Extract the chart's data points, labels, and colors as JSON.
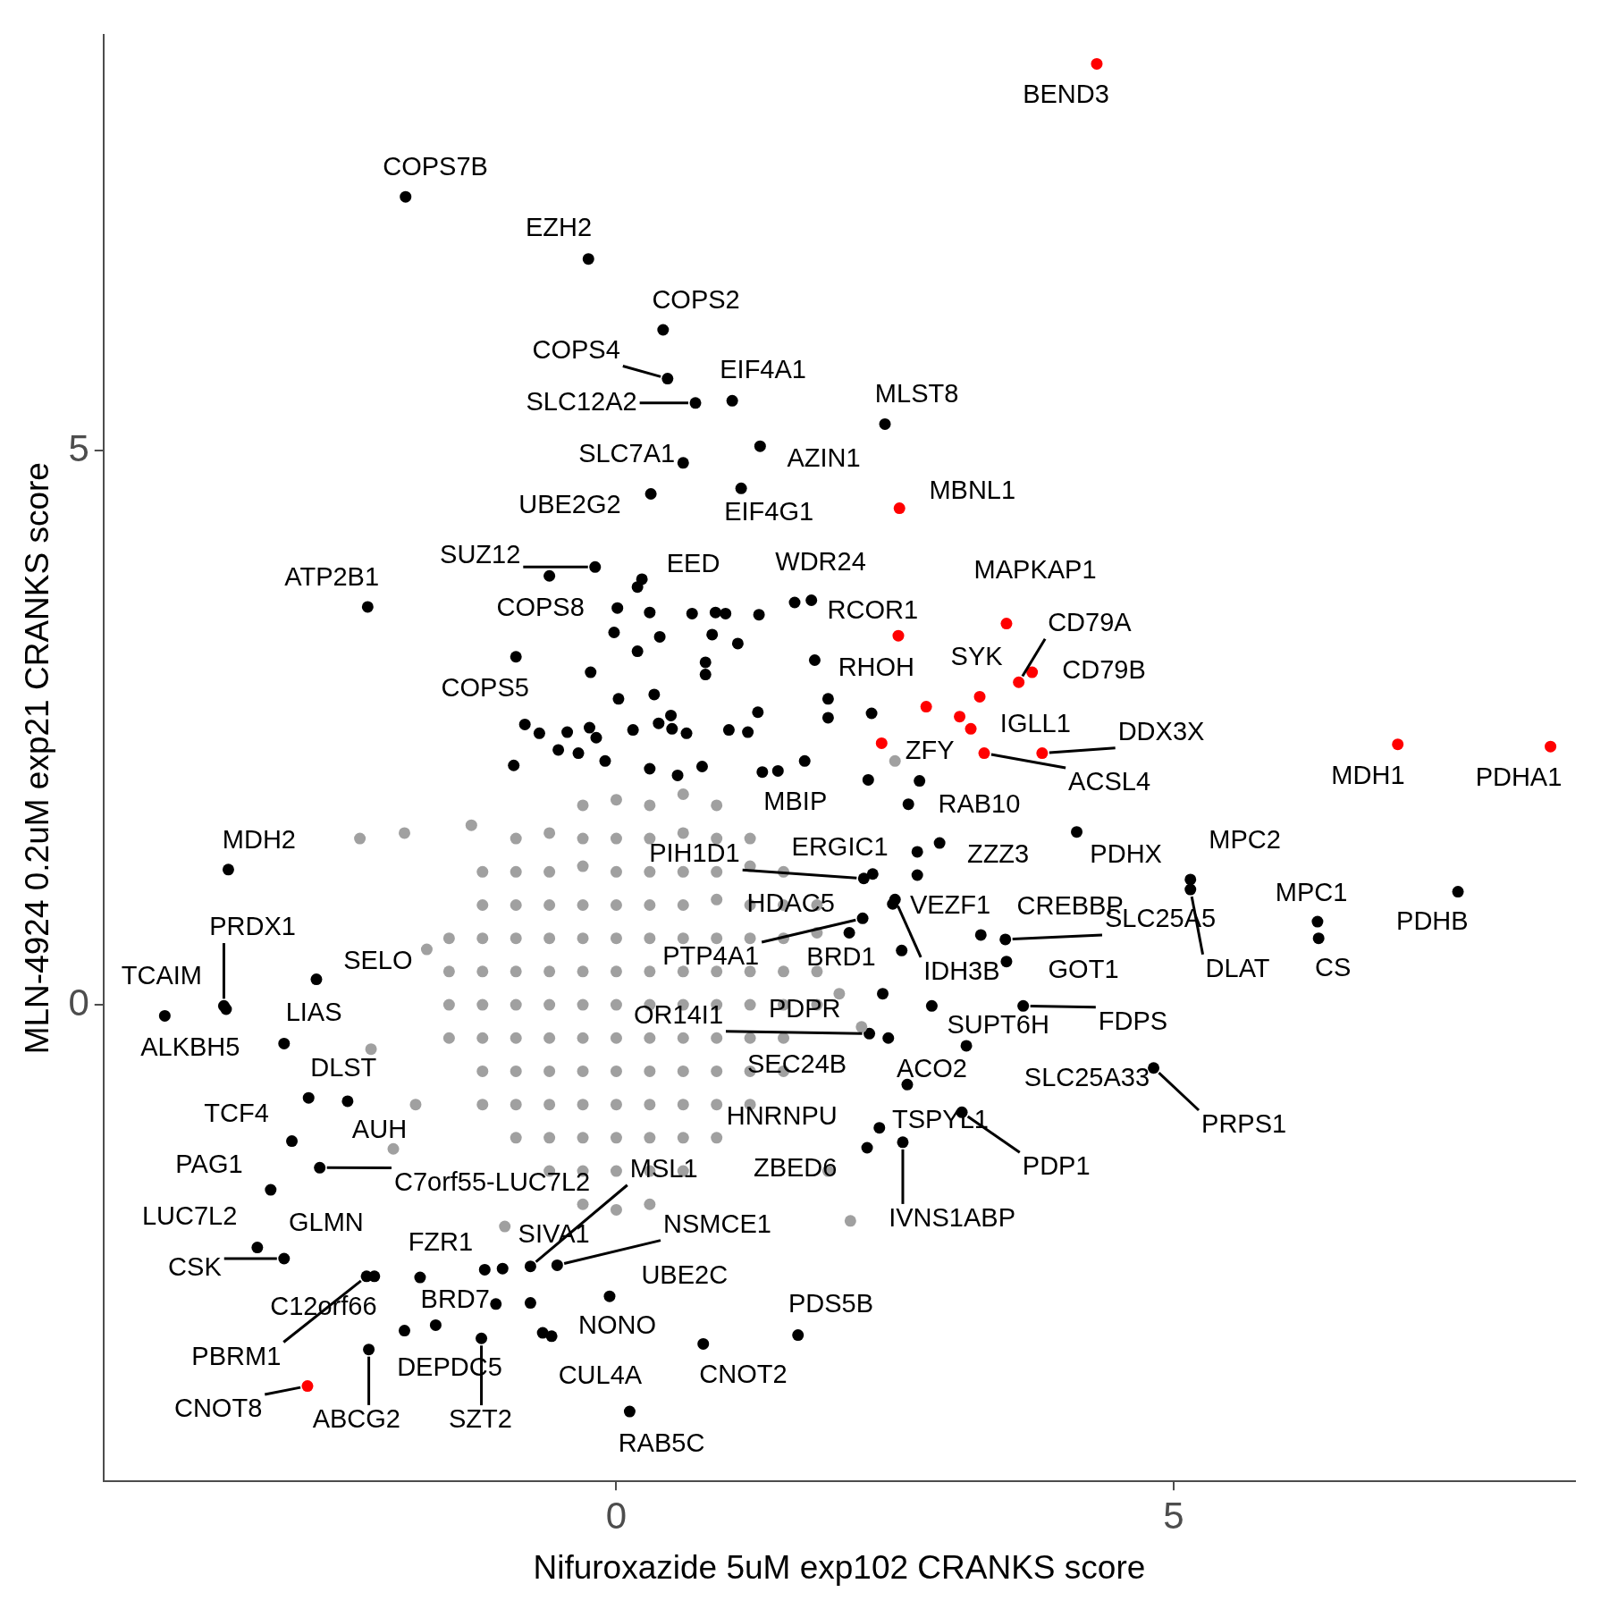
{
  "chart_data": {
    "type": "scatter",
    "xlabel": "Nifuroxazide 5uM exp102 CRANKS score",
    "ylabel": "MLN-4924 0.2uM exp21 CRANKS score",
    "xlim": [
      -4.6,
      8.6
    ],
    "ylim": [
      -4.3,
      8.75
    ],
    "xticks": [
      0,
      5
    ],
    "yticks": [
      0,
      5
    ],
    "grid": false,
    "legend": false,
    "marker": "circle",
    "series": [
      {
        "color": "#a0a0a0",
        "x": [
          -0.3,
          0,
          0.3,
          0.6,
          0.9,
          -0.9,
          -0.6,
          -0.3,
          0,
          0.3,
          0.6,
          0.9,
          1.2,
          -1.2,
          -0.9,
          -0.6,
          -0.3,
          0,
          0.3,
          0.6,
          0.9,
          1.2,
          1.5,
          -1.2,
          -0.9,
          -0.6,
          -0.3,
          0,
          0.3,
          0.6,
          0.9,
          1.2,
          1.5,
          1.8,
          -1.5,
          -1.2,
          -0.9,
          -0.6,
          -0.3,
          0,
          0.3,
          0.6,
          0.9,
          1.2,
          1.5,
          1.8,
          -1.5,
          -1.2,
          -0.9,
          -0.6,
          -0.3,
          0,
          0.3,
          0.6,
          0.9,
          1.2,
          1.5,
          1.8,
          -1.5,
          -1.2,
          -0.9,
          -0.6,
          -0.3,
          0,
          0.3,
          0.6,
          0.9,
          1.2,
          1.5,
          1.8,
          -1.5,
          -1.2,
          -0.9,
          -0.6,
          -0.3,
          0,
          0.3,
          0.6,
          0.9,
          1.2,
          1.5,
          -1.2,
          -0.9,
          -0.6,
          -0.3,
          0,
          0.3,
          0.6,
          0.9,
          1.2,
          1.5,
          -1.2,
          -0.9,
          -0.6,
          -0.3,
          0,
          0.3,
          0.6,
          0.9,
          1.2,
          -0.9,
          -0.6,
          -0.3,
          0,
          0.3,
          0.6,
          0.9,
          -0.6,
          -0.3,
          0,
          0.3,
          0.6,
          -0.3,
          0,
          0.3,
          -2.3,
          -1.9,
          -1.3,
          -2.2,
          -2.0,
          -1.0,
          2.1,
          2.0,
          2.2,
          2.5,
          1.9,
          -1.7,
          -1.8
        ],
        "values": [
          1.8,
          1.85,
          1.8,
          1.9,
          1.8,
          1.5,
          1.55,
          1.5,
          1.5,
          1.5,
          1.55,
          1.5,
          1.5,
          1.2,
          1.2,
          1.2,
          1.25,
          1.2,
          1.2,
          1.2,
          1.2,
          1.25,
          1.2,
          0.9,
          0.9,
          0.9,
          0.9,
          0.9,
          0.9,
          0.9,
          0.95,
          0.9,
          0.9,
          0.9,
          0.6,
          0.6,
          0.6,
          0.6,
          0.6,
          0.6,
          0.6,
          0.6,
          0.6,
          0.6,
          0.6,
          0.65,
          0.3,
          0.3,
          0.3,
          0.3,
          0.3,
          0.3,
          0.3,
          0.3,
          0.3,
          0.3,
          0.3,
          0.3,
          0,
          0,
          0,
          0,
          0,
          0,
          0,
          0,
          0,
          0,
          0,
          0,
          -0.3,
          -0.3,
          -0.3,
          -0.3,
          -0.3,
          -0.3,
          -0.3,
          -0.3,
          -0.3,
          -0.3,
          -0.3,
          -0.6,
          -0.6,
          -0.6,
          -0.6,
          -0.6,
          -0.6,
          -0.6,
          -0.6,
          -0.6,
          -0.6,
          -0.9,
          -0.9,
          -0.9,
          -0.9,
          -0.9,
          -0.9,
          -0.9,
          -0.9,
          -0.9,
          -1.2,
          -1.2,
          -1.2,
          -1.2,
          -1.2,
          -1.2,
          -1.2,
          -1.5,
          -1.5,
          -1.5,
          -1.5,
          -1.5,
          -1.8,
          -1.85,
          -1.8,
          1.5,
          1.55,
          1.62,
          -0.4,
          -1.3,
          -2.0,
          -1.95,
          0.1,
          -0.2,
          2.2,
          -1.5,
          0.5,
          -0.9
        ]
      },
      {
        "color": "#000000",
        "x": [
          -1.89,
          -0.25,
          0.42,
          0.46,
          0.71,
          1.04,
          2.41,
          1.29,
          0.6,
          1.12,
          0.31,
          -0.19,
          -0.6,
          0.23,
          0.19,
          -2.23,
          1.6,
          1.75,
          0.01,
          0.3,
          0.68,
          0.89,
          0.98,
          1.28,
          -0.02,
          0.19,
          0.39,
          0.86,
          1.09,
          -0.9,
          1.78,
          0.8,
          0.8,
          -0.23,
          0.02,
          0.34,
          0.49,
          0.38,
          1.27,
          1.9,
          1.9,
          2.29,
          -0.82,
          -0.44,
          -0.24,
          -0.18,
          -0.69,
          -0.52,
          -0.34,
          0.15,
          0.5,
          0.63,
          1.01,
          1.18,
          1.69,
          1.31,
          1.45,
          -0.1,
          0.3,
          0.55,
          0.77,
          -0.92,
          2.26,
          2.72,
          2.62,
          2.9,
          2.7,
          2.7,
          4.13,
          5.15,
          5.15,
          7.55,
          6.29,
          6.3,
          2.3,
          2.22,
          2.5,
          2.48,
          2.21,
          2.09,
          2.56,
          3.27,
          3.49,
          3.5,
          2.39,
          2.83,
          3.65,
          3.14,
          2.27,
          2.44,
          2.61,
          4.82,
          3.1,
          2.36,
          2.25,
          2.57,
          -3.48,
          -3.52,
          -3.5,
          -4.05,
          -2.69,
          -2.98,
          -2.76,
          -2.41,
          -2.91,
          -2.66,
          -3.1,
          -3.22,
          -2.98,
          -2.24,
          -2.17,
          -1.76,
          -1.18,
          -1.02,
          -0.77,
          -0.53,
          -0.06,
          -1.08,
          -0.77,
          -1.62,
          -1.9,
          -1.21,
          -0.66,
          -0.58,
          -2.22,
          0.78,
          1.63,
          0.12
        ],
        "values": [
          7.29,
          6.73,
          6.09,
          5.65,
          5.43,
          5.45,
          5.24,
          5.04,
          4.89,
          4.66,
          4.61,
          3.95,
          3.87,
          3.84,
          3.77,
          3.59,
          3.63,
          3.65,
          3.58,
          3.54,
          3.53,
          3.54,
          3.53,
          3.52,
          3.36,
          3.19,
          3.32,
          3.34,
          3.26,
          3.14,
          3.11,
          3.09,
          2.98,
          3.0,
          2.76,
          2.8,
          2.61,
          2.54,
          2.64,
          2.76,
          2.59,
          2.63,
          2.53,
          2.46,
          2.5,
          2.41,
          2.45,
          2.3,
          2.27,
          2.48,
          2.49,
          2.45,
          2.48,
          2.46,
          2.2,
          2.1,
          2.11,
          2.2,
          2.13,
          2.07,
          2.15,
          2.16,
          2.03,
          2.02,
          1.81,
          1.46,
          1.38,
          1.17,
          1.56,
          1.13,
          1.04,
          1.02,
          0.75,
          0.6,
          1.18,
          1.14,
          0.95,
          0.91,
          0.78,
          0.65,
          0.49,
          0.63,
          0.59,
          0.39,
          0.1,
          -0.01,
          -0.01,
          -0.37,
          -0.26,
          -0.3,
          -0.72,
          -0.57,
          -0.97,
          -1.11,
          -1.29,
          -1.24,
          1.22,
          -0.01,
          -0.04,
          -0.1,
          0.23,
          -0.35,
          -0.84,
          -0.87,
          -1.23,
          -1.47,
          -1.67,
          -2.19,
          -2.29,
          -2.45,
          -2.45,
          -2.46,
          -2.39,
          -2.38,
          -2.36,
          -2.35,
          -2.63,
          -2.7,
          -2.69,
          -2.89,
          -2.94,
          -3.01,
          -2.96,
          -2.99,
          -3.11,
          -3.06,
          -2.98,
          -3.67
        ]
      },
      {
        "color": "#ff0000",
        "x": [
          4.31,
          2.54,
          2.53,
          3.5,
          3.73,
          3.61,
          3.26,
          2.78,
          3.08,
          3.18,
          2.38,
          3.3,
          3.82,
          7.01,
          8.38,
          -2.77
        ],
        "values": [
          8.49,
          4.48,
          3.33,
          3.44,
          3.0,
          2.91,
          2.78,
          2.69,
          2.6,
          2.49,
          2.36,
          2.27,
          2.27,
          2.35,
          2.33,
          -3.44
        ]
      }
    ],
    "annotations": [
      {
        "text": "BEND3",
        "x": 4.31,
        "y": 8.49
      },
      {
        "text": "COPS7B",
        "x": -1.89,
        "y": 7.29
      },
      {
        "text": "EZH2",
        "x": -0.25,
        "y": 6.73
      },
      {
        "text": "COPS2",
        "x": 0.42,
        "y": 6.09
      },
      {
        "text": "COPS4",
        "x": 0.46,
        "y": 5.65
      },
      {
        "text": "EIF4A1",
        "x": 1.04,
        "y": 5.45
      },
      {
        "text": "SLC12A2",
        "x": 0.71,
        "y": 5.43
      },
      {
        "text": "MLST8",
        "x": 2.41,
        "y": 5.24
      },
      {
        "text": "SLC7A1",
        "x": 0.6,
        "y": 4.89
      },
      {
        "text": "AZIN1",
        "x": 1.29,
        "y": 5.04
      },
      {
        "text": "MBNL1",
        "x": 2.54,
        "y": 4.48
      },
      {
        "text": "UBE2G2",
        "x": 0.31,
        "y": 4.61
      },
      {
        "text": "EIF4G1",
        "x": 1.12,
        "y": 4.66
      },
      {
        "text": "SUZ12",
        "x": -0.19,
        "y": 3.95
      },
      {
        "text": "EED",
        "x": 0.23,
        "y": 3.84
      },
      {
        "text": "WDR24",
        "x": 1.75,
        "y": 3.65
      },
      {
        "text": "ATP2B1",
        "x": -2.23,
        "y": 3.59
      },
      {
        "text": "MAPKAP1",
        "x": 3.5,
        "y": 3.44
      },
      {
        "text": "COPS8",
        "x": 0.01,
        "y": 3.58
      },
      {
        "text": "RCOR1",
        "x": 2.53,
        "y": 3.33
      },
      {
        "text": "CD79A",
        "x": 3.61,
        "y": 2.91
      },
      {
        "text": "SYK",
        "x": 3.26,
        "y": 2.78
      },
      {
        "text": "RHOH",
        "x": 1.78,
        "y": 3.11
      },
      {
        "text": "CD79B",
        "x": 3.73,
        "y": 3.0
      },
      {
        "text": "COPS5",
        "x": -0.9,
        "y": 3.14
      },
      {
        "text": "IGLL1",
        "x": 3.18,
        "y": 2.49
      },
      {
        "text": "DDX3X",
        "x": 3.82,
        "y": 2.27
      },
      {
        "text": "ZFY",
        "x": 2.38,
        "y": 2.36
      },
      {
        "text": "MDH1",
        "x": 7.01,
        "y": 2.35
      },
      {
        "text": "PDHA1",
        "x": 8.38,
        "y": 2.33
      },
      {
        "text": "ACSL4",
        "x": 3.3,
        "y": 2.27
      },
      {
        "text": "MBIP",
        "x": 2.26,
        "y": 2.03
      },
      {
        "text": "RAB10",
        "x": 2.62,
        "y": 1.81
      },
      {
        "text": "MDH2",
        "x": -3.48,
        "y": 1.22
      },
      {
        "text": "MPC2",
        "x": 5.15,
        "y": 1.13
      },
      {
        "text": "PIH1D1",
        "x": 2.22,
        "y": 1.14
      },
      {
        "text": "ERGIC1",
        "x": 2.3,
        "y": 1.18
      },
      {
        "text": "ZZZ3",
        "x": 2.9,
        "y": 1.46
      },
      {
        "text": "PDHX",
        "x": 4.13,
        "y": 1.56
      },
      {
        "text": "MPC1",
        "x": 6.29,
        "y": 0.75
      },
      {
        "text": "HDAC5",
        "x": 2.09,
        "y": 0.65
      },
      {
        "text": "VEZF1",
        "x": 2.48,
        "y": 0.91
      },
      {
        "text": "CREBBP",
        "x": 3.27,
        "y": 0.63
      },
      {
        "text": "PDHB",
        "x": 7.55,
        "y": 1.02
      },
      {
        "text": "PRDX1",
        "x": -3.52,
        "y": -0.01
      },
      {
        "text": "SLC25A5",
        "x": 3.49,
        "y": 0.59
      },
      {
        "text": "PTP4A1",
        "x": 2.21,
        "y": 0.78
      },
      {
        "text": "BRD1",
        "x": 2.56,
        "y": 0.49
      },
      {
        "text": "SELO",
        "x": -2.69,
        "y": 0.23
      },
      {
        "text": "IDH3B",
        "x": 2.5,
        "y": 0.95
      },
      {
        "text": "GOT1",
        "x": 3.5,
        "y": 0.39
      },
      {
        "text": "DLAT",
        "x": 5.15,
        "y": 1.04
      },
      {
        "text": "CS",
        "x": 6.3,
        "y": 0.6
      },
      {
        "text": "TCAIM",
        "x": -4.05,
        "y": -0.1
      },
      {
        "text": "LIAS",
        "x": -2.98,
        "y": -0.35
      },
      {
        "text": "OR14I1",
        "x": 2.27,
        "y": -0.26
      },
      {
        "text": "PDPR",
        "x": 2.39,
        "y": 0.1
      },
      {
        "text": "FDPS",
        "x": 3.65,
        "y": -0.01
      },
      {
        "text": "SUPT6H",
        "x": 3.14,
        "y": -0.37
      },
      {
        "text": "ALKBH5",
        "x": -3.5,
        "y": -0.04
      },
      {
        "text": "SEC24B",
        "x": 2.44,
        "y": -0.3
      },
      {
        "text": "ACO2",
        "x": 2.61,
        "y": -0.72
      },
      {
        "text": "DLST",
        "x": -2.76,
        "y": -0.84
      },
      {
        "text": "SLC25A33",
        "x": 4.82,
        "y": -0.57
      },
      {
        "text": "TCF4",
        "x": -2.91,
        "y": -1.23
      },
      {
        "text": "HNRNPU",
        "x": 2.36,
        "y": -1.11
      },
      {
        "text": "TSPYL1",
        "x": 3.1,
        "y": -0.97
      },
      {
        "text": "AUH",
        "x": -2.41,
        "y": -0.87
      },
      {
        "text": "PRPS1",
        "x": 4.82,
        "y": -0.57
      },
      {
        "text": "PAG1",
        "x": -3.1,
        "y": -1.67
      },
      {
        "text": "MSL1",
        "x": -0.77,
        "y": -2.36
      },
      {
        "text": "ZBED6",
        "x": 2.25,
        "y": -1.29
      },
      {
        "text": "PDP1",
        "x": 3.1,
        "y": -0.97
      },
      {
        "text": "C7orf55-LUC7L2",
        "x": -2.66,
        "y": -1.47
      },
      {
        "text": "LUC7L2",
        "x": -3.22,
        "y": -2.19
      },
      {
        "text": "GLMN",
        "x": -2.17,
        "y": -2.45
      },
      {
        "text": "IVNS1ABP",
        "x": 2.57,
        "y": -1.24
      },
      {
        "text": "NSMCE1",
        "x": -0.53,
        "y": -2.35
      },
      {
        "text": "FZR1",
        "x": -1.76,
        "y": -2.46
      },
      {
        "text": "SIVA1",
        "x": -1.02,
        "y": -2.38
      },
      {
        "text": "CSK",
        "x": -2.98,
        "y": -2.29
      },
      {
        "text": "UBE2C",
        "x": -0.06,
        "y": -2.63
      },
      {
        "text": "C12orf66",
        "x": -2.24,
        "y": -2.45
      },
      {
        "text": "BRD7",
        "x": -1.62,
        "y": -2.89
      },
      {
        "text": "PDS5B",
        "x": 1.63,
        "y": -2.98
      },
      {
        "text": "NONO",
        "x": -0.58,
        "y": -2.99
      },
      {
        "text": "PBRM1",
        "x": -2.24,
        "y": -2.45
      },
      {
        "text": "DEPDC5",
        "x": -1.9,
        "y": -2.94
      },
      {
        "text": "CUL4A",
        "x": -0.66,
        "y": -2.96
      },
      {
        "text": "CNOT2",
        "x": 0.78,
        "y": -3.06
      },
      {
        "text": "CNOT8",
        "x": -2.77,
        "y": -3.44
      },
      {
        "text": "ABCG2",
        "x": -2.22,
        "y": -3.11
      },
      {
        "text": "SZT2",
        "x": -1.21,
        "y": -3.01
      },
      {
        "text": "RAB5C",
        "x": 0.12,
        "y": -3.67
      }
    ]
  }
}
